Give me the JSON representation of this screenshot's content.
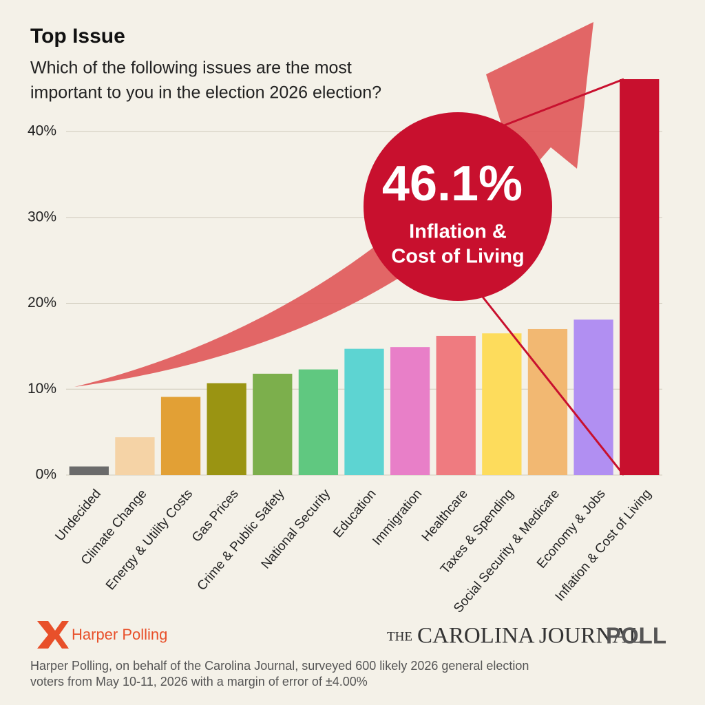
{
  "chart_data": {
    "type": "bar",
    "title": "Top Issue",
    "subtitle": [
      "Which of the following issues are the most",
      "important to you in the election 2026 election?"
    ],
    "categories": [
      "Undecided",
      "Climate Change",
      "Energy & Utility Costs",
      "Gas Prices",
      "Crime & Public Safety",
      "National Security",
      "Education",
      "Immigration",
      "Healthcare",
      "Taxes & Spending",
      "Social Security & Medicare",
      "Economy & Jobs",
      "Inflation & Cost of Living"
    ],
    "values": [
      1.0,
      4.4,
      9.1,
      10.7,
      11.8,
      12.3,
      14.7,
      14.9,
      16.2,
      16.5,
      17.0,
      18.1,
      46.1
    ],
    "colors": [
      "#6b6b6b",
      "#f5d3a6",
      "#e2a035",
      "#9a9412",
      "#7caf4c",
      "#60c880",
      "#5dd4d2",
      "#e87fc8",
      "#ef7b80",
      "#fddc5c",
      "#f2b872",
      "#b18ff2",
      "#c8102e"
    ],
    "ylim": [
      0,
      46.1
    ],
    "yticks": [
      {
        "value": 0,
        "label": "0%"
      },
      {
        "value": 10,
        "label": "10%"
      },
      {
        "value": 20,
        "label": "20%"
      },
      {
        "value": 30,
        "label": "30%"
      },
      {
        "value": 40,
        "label": "40%"
      }
    ],
    "grid": true,
    "callout": {
      "text": "46.1%",
      "lines": [
        "Inflation &",
        "Cost of Living"
      ]
    },
    "logo": "Harper Polling",
    "brand": {
      "prefix": "THE",
      "name": "CAROLINA JOURNAL",
      "suffix": "POLL"
    },
    "footnote": [
      "Harper Polling, on behalf of the Carolina Journal, surveyed 600 likely 2026 general election",
      "voters from May 10-11, 2026 with a margin of error of ±4.00%"
    ]
  }
}
